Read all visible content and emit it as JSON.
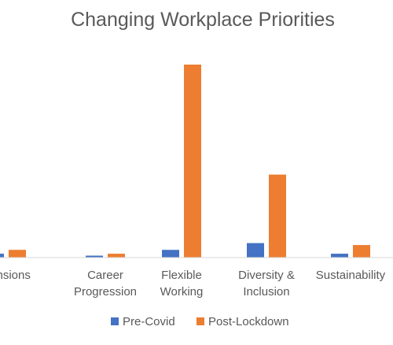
{
  "chart_data": {
    "type": "bar",
    "title": "Changing Workplace Priorities",
    "xlabel": "",
    "ylabel": "",
    "ylim": [
      0,
      100
    ],
    "grid": false,
    "legend_position": "bottom",
    "categories": [
      [
        "Pensions"
      ],
      [
        "Career",
        "Progression"
      ],
      [
        "Flexible",
        "Working"
      ],
      [
        "Diversity &",
        "Inclusion"
      ],
      [
        "Sustainability"
      ]
    ],
    "series": [
      {
        "name": "Pre-Covid",
        "color": "#4472C4",
        "values": [
          2,
          1,
          4,
          7.5,
          2
        ]
      },
      {
        "name": "Post-Lockdown",
        "color": "#ED7D31",
        "values": [
          4,
          2,
          100,
          43,
          6.5
        ]
      }
    ]
  }
}
